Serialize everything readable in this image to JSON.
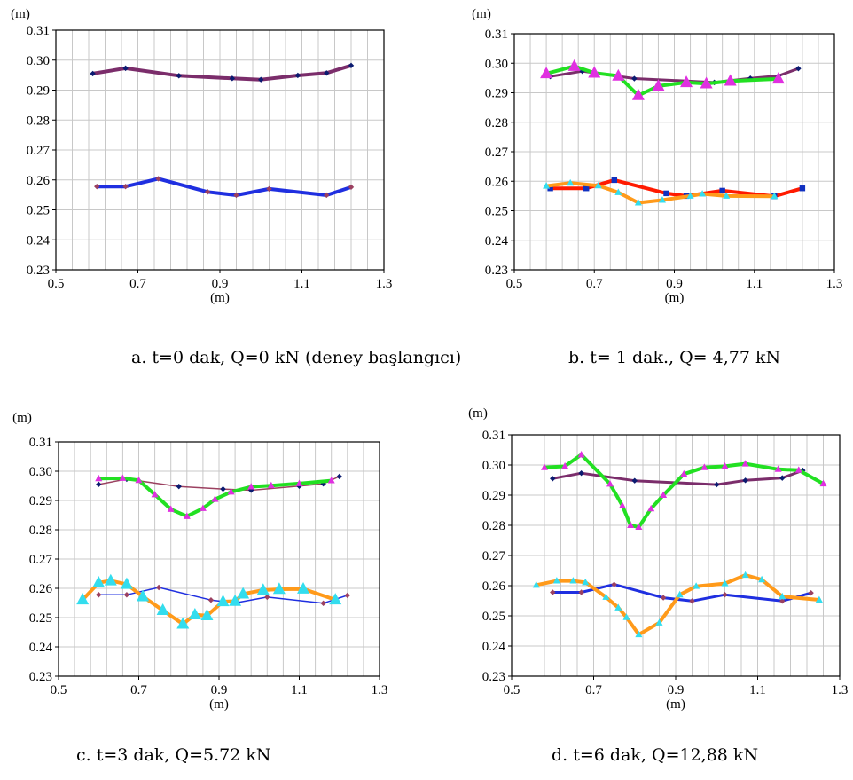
{
  "figure": {
    "captions": [
      "a. t=0 dak, Q=0 kN (deney başlangıcı)",
      "b. t= 1 dak., Q= 4,77 kN",
      "c. t=3 dak, Q=5.72 kN",
      "d. t=6 dak, Q=12,88 kN"
    ]
  },
  "colors": {
    "purple": "#7b2d6b",
    "blue": "#1f2fe0",
    "green": "#22e022",
    "orange": "#ff9a1a",
    "red": "#ff1a00",
    "magenta": "#e030e0",
    "cyan": "#33ddee",
    "navy": "#0b1b70",
    "brown": "#9b4060",
    "darkblue": "#1030c0"
  },
  "chart_data": [
    {
      "id": "a",
      "type": "line",
      "caption": "a. t=0 dak, Q=0 kN (deney başlangıcı)",
      "xlabel": "(m)",
      "ylabel": "(m)",
      "xlim": [
        0.5,
        1.3
      ],
      "ylim": [
        0.23,
        0.31
      ],
      "xticks": [
        "0.5",
        "0.7",
        "0.9",
        "1.1",
        "1.3"
      ],
      "yticks": [
        "0.23",
        "0.24",
        "0.25",
        "0.26",
        "0.27",
        "0.28",
        "0.29",
        "0.30",
        "0.31"
      ],
      "grid": true,
      "series": [
        {
          "color": "purple",
          "width": 4,
          "marker": "diamond",
          "marker_color": "navy",
          "x": [
            0.59,
            0.67,
            0.8,
            0.93,
            1.0,
            1.09,
            1.16,
            1.22
          ],
          "y": [
            0.2955,
            0.2973,
            0.2948,
            0.2939,
            0.2935,
            0.2949,
            0.2957,
            0.2982
          ]
        },
        {
          "color": "blue",
          "width": 4,
          "marker": "diamond",
          "marker_color": "brown",
          "x": [
            0.6,
            0.67,
            0.75,
            0.87,
            0.94,
            1.02,
            1.16,
            1.22
          ],
          "y": [
            0.2578,
            0.2578,
            0.2604,
            0.256,
            0.2549,
            0.257,
            0.2549,
            0.2576
          ]
        }
      ]
    },
    {
      "id": "b",
      "type": "line",
      "caption": "b. t= 1 dak., Q= 4,77 kN",
      "xlabel": "(m)",
      "ylabel": "(m)",
      "xlim": [
        0.5,
        1.3
      ],
      "ylim": [
        0.23,
        0.31
      ],
      "xticks": [
        "0.5",
        "0.7",
        "0.9",
        "1.1",
        "1.3"
      ],
      "yticks": [
        "0.23",
        "0.24",
        "0.25",
        "0.26",
        "0.27",
        "0.28",
        "0.29",
        "0.30",
        "0.31"
      ],
      "grid": true,
      "series": [
        {
          "color": "purple",
          "width": 3,
          "marker": "diamond",
          "marker_color": "navy",
          "x": [
            0.59,
            0.67,
            0.8,
            0.93,
            1.0,
            1.09,
            1.16,
            1.21
          ],
          "y": [
            0.2955,
            0.2973,
            0.2948,
            0.294,
            0.2935,
            0.2949,
            0.2957,
            0.2982
          ]
        },
        {
          "color": "green",
          "width": 4,
          "marker": "triangle",
          "marker_color": "magenta",
          "marker_size": 7,
          "x": [
            0.58,
            0.65,
            0.7,
            0.76,
            0.81,
            0.86,
            0.93,
            0.98,
            1.04,
            1.16
          ],
          "y": [
            0.2965,
            0.299,
            0.2967,
            0.2957,
            0.2891,
            0.2923,
            0.2935,
            0.2931,
            0.294,
            0.2947
          ]
        },
        {
          "color": "red",
          "width": 4,
          "marker": "square",
          "marker_color": "darkblue",
          "x": [
            0.59,
            0.68,
            0.75,
            0.88,
            0.93,
            1.02,
            1.15,
            1.22
          ],
          "y": [
            0.2576,
            0.2576,
            0.2604,
            0.2559,
            0.255,
            0.2568,
            0.2549,
            0.2576
          ]
        },
        {
          "color": "orange",
          "width": 4,
          "marker": "triangle",
          "marker_color": "cyan",
          "marker_size": 4,
          "x": [
            0.58,
            0.64,
            0.71,
            0.76,
            0.81,
            0.87,
            0.94,
            0.97,
            1.03,
            1.15
          ],
          "y": [
            0.2584,
            0.2594,
            0.2585,
            0.2562,
            0.2527,
            0.2536,
            0.255,
            0.2557,
            0.255,
            0.2549
          ]
        }
      ]
    },
    {
      "id": "c",
      "type": "line",
      "caption": "c. t=3 dak, Q=5.72 kN",
      "xlabel": "(m)",
      "ylabel": "(m)",
      "xlim": [
        0.5,
        1.3
      ],
      "ylim": [
        0.23,
        0.31
      ],
      "xticks": [
        "0.5",
        "0.7",
        "0.9",
        "1.1",
        "1.3"
      ],
      "yticks": [
        "0.23",
        "0.24",
        "0.25",
        "0.26",
        "0.27",
        "0.28",
        "0.29",
        "0.30",
        "0.31"
      ],
      "grid": true,
      "series": [
        {
          "color": "brown",
          "width": 1.5,
          "marker": "diamond",
          "marker_color": "navy",
          "x": [
            0.6,
            0.67,
            0.8,
            0.91,
            0.98,
            1.1,
            1.16,
            1.2
          ],
          "y": [
            0.2955,
            0.2973,
            0.2948,
            0.2939,
            0.2935,
            0.2949,
            0.2957,
            0.2982
          ]
        },
        {
          "color": "green",
          "width": 4,
          "marker": "triangle",
          "marker_color": "magenta",
          "marker_size": 4,
          "x": [
            0.6,
            0.66,
            0.7,
            0.74,
            0.78,
            0.82,
            0.86,
            0.89,
            0.93,
            0.98,
            1.03,
            1.1,
            1.18
          ],
          "y": [
            0.2975,
            0.2976,
            0.2969,
            0.292,
            0.287,
            0.2846,
            0.2873,
            0.2904,
            0.2929,
            0.2947,
            0.2951,
            0.2958,
            0.2968
          ]
        },
        {
          "color": "blue",
          "width": 1.5,
          "marker": "diamond",
          "marker_color": "brown",
          "x": [
            0.6,
            0.67,
            0.75,
            0.88,
            0.94,
            1.02,
            1.16,
            1.22
          ],
          "y": [
            0.2578,
            0.2578,
            0.2603,
            0.256,
            0.255,
            0.257,
            0.2549,
            0.2576
          ]
        },
        {
          "color": "orange",
          "width": 4,
          "marker": "triangle",
          "marker_color": "cyan",
          "marker_size": 7,
          "x": [
            0.56,
            0.6,
            0.63,
            0.67,
            0.71,
            0.76,
            0.81,
            0.84,
            0.87,
            0.91,
            0.94,
            0.96,
            1.01,
            1.05,
            1.11,
            1.19
          ],
          "y": [
            0.2561,
            0.2619,
            0.2626,
            0.2614,
            0.2572,
            0.2525,
            0.2478,
            0.251,
            0.2507,
            0.2555,
            0.2556,
            0.2581,
            0.2594,
            0.2597,
            0.2598,
            0.2561
          ]
        }
      ]
    },
    {
      "id": "d",
      "type": "line",
      "caption": "d. t=6 dak, Q=12,88 kN",
      "xlabel": "(m)",
      "ylabel": "(m)",
      "xlim": [
        0.5,
        1.3
      ],
      "ylim": [
        0.23,
        0.31
      ],
      "xticks": [
        "0.5",
        "0.7",
        "0.9",
        "1.1",
        "1.3"
      ],
      "yticks": [
        "0.23",
        "0.24",
        "0.25",
        "0.26",
        "0.27",
        "0.28",
        "0.29",
        "0.30",
        "0.31"
      ],
      "grid": true,
      "series": [
        {
          "color": "purple",
          "width": 3,
          "marker": "diamond",
          "marker_color": "navy",
          "x": [
            0.6,
            0.67,
            0.8,
            1.0,
            1.07,
            1.16,
            1.21
          ],
          "y": [
            0.2955,
            0.2973,
            0.2948,
            0.2935,
            0.2949,
            0.2957,
            0.2982
          ]
        },
        {
          "color": "green",
          "width": 4,
          "marker": "triangle",
          "marker_color": "magenta",
          "marker_size": 4,
          "x": [
            0.58,
            0.63,
            0.67,
            0.74,
            0.77,
            0.79,
            0.81,
            0.84,
            0.87,
            0.92,
            0.97,
            1.02,
            1.07,
            1.15,
            1.2,
            1.26
          ],
          "y": [
            0.2992,
            0.2996,
            0.3034,
            0.2937,
            0.2865,
            0.28,
            0.2794,
            0.2855,
            0.29,
            0.297,
            0.2992,
            0.2996,
            0.3004,
            0.2986,
            0.2983,
            0.2938
          ]
        },
        {
          "color": "blue",
          "width": 3,
          "marker": "diamond",
          "marker_color": "brown",
          "x": [
            0.6,
            0.67,
            0.75,
            0.87,
            0.94,
            1.02,
            1.16,
            1.23
          ],
          "y": [
            0.2578,
            0.2578,
            0.2604,
            0.256,
            0.2549,
            0.257,
            0.2549,
            0.2576
          ]
        },
        {
          "color": "orange",
          "width": 4,
          "marker": "triangle",
          "marker_color": "cyan",
          "marker_size": 4,
          "x": [
            0.56,
            0.61,
            0.65,
            0.68,
            0.73,
            0.76,
            0.78,
            0.81,
            0.86,
            0.91,
            0.95,
            1.02,
            1.07,
            1.11,
            1.16,
            1.25
          ],
          "y": [
            0.2602,
            0.2616,
            0.2616,
            0.2611,
            0.2562,
            0.2527,
            0.2495,
            0.2438,
            0.2477,
            0.257,
            0.2598,
            0.2607,
            0.2635,
            0.262,
            0.2564,
            0.2553
          ]
        }
      ]
    }
  ]
}
